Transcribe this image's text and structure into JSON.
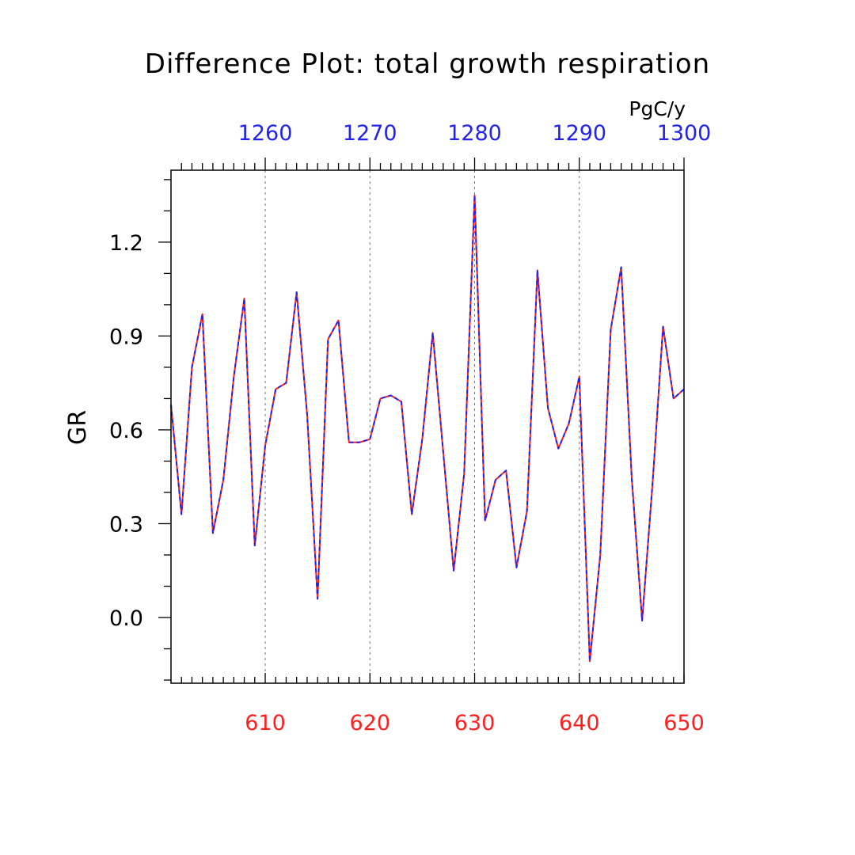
{
  "chart_data": {
    "type": "line",
    "title": "Difference Plot: total growth respiration",
    "units": "PgC/y",
    "ylabel": "GR",
    "xlabel": "",
    "xlim": [
      601,
      650
    ],
    "ylim": [
      -0.21,
      1.43
    ],
    "y_ticks": [
      0.0,
      0.3,
      0.6,
      0.9,
      1.2
    ],
    "y_tick_labels": [
      "0.0",
      "0.3",
      "0.6",
      "0.9",
      "1.2"
    ],
    "bottom_axis": {
      "ticks": [
        610,
        620,
        630,
        640,
        650
      ],
      "labels": [
        "610",
        "620",
        "630",
        "640",
        "650"
      ],
      "color": "#ff1f1f"
    },
    "top_axis": {
      "ticks": [
        1260,
        1270,
        1280,
        1290,
        1300
      ],
      "labels": [
        "1260",
        "1270",
        "1280",
        "1290",
        "1300"
      ],
      "offset": 650,
      "color": "#2222ee"
    },
    "grid": "vertical dashed at major top ticks",
    "x": [
      601,
      602,
      603,
      604,
      605,
      606,
      607,
      608,
      609,
      610,
      611,
      612,
      613,
      614,
      615,
      616,
      617,
      618,
      619,
      620,
      621,
      622,
      623,
      624,
      625,
      626,
      627,
      628,
      629,
      630,
      631,
      632,
      633,
      634,
      635,
      636,
      637,
      638,
      639,
      640,
      641,
      642,
      643,
      644,
      645,
      646,
      647,
      648,
      649,
      650
    ],
    "series": [
      {
        "color": "#ff1f1f",
        "style": "solid",
        "values": [
          0.68,
          0.33,
          0.8,
          0.97,
          0.27,
          0.44,
          0.77,
          1.02,
          0.23,
          0.55,
          0.73,
          0.75,
          1.04,
          0.65,
          0.06,
          0.89,
          0.95,
          0.56,
          0.56,
          0.57,
          0.7,
          0.71,
          0.69,
          0.33,
          0.57,
          0.91,
          0.53,
          0.15,
          0.46,
          1.35,
          0.31,
          0.44,
          0.47,
          0.16,
          0.34,
          1.11,
          0.67,
          0.54,
          0.62,
          0.77,
          -0.14,
          0.2,
          0.92,
          1.12,
          0.45,
          -0.01,
          0.43,
          0.93,
          0.7,
          0.73
        ]
      },
      {
        "color": "#2222ee",
        "style": "dashed",
        "values": [
          0.68,
          0.33,
          0.8,
          0.97,
          0.27,
          0.44,
          0.77,
          1.02,
          0.23,
          0.55,
          0.73,
          0.75,
          1.04,
          0.65,
          0.06,
          0.89,
          0.95,
          0.56,
          0.56,
          0.57,
          0.7,
          0.71,
          0.69,
          0.33,
          0.57,
          0.91,
          0.53,
          0.15,
          0.46,
          1.35,
          0.31,
          0.44,
          0.47,
          0.16,
          0.34,
          1.11,
          0.67,
          0.54,
          0.62,
          0.77,
          -0.14,
          0.2,
          0.92,
          1.12,
          0.45,
          -0.01,
          0.43,
          0.93,
          0.7,
          0.73
        ]
      }
    ]
  }
}
